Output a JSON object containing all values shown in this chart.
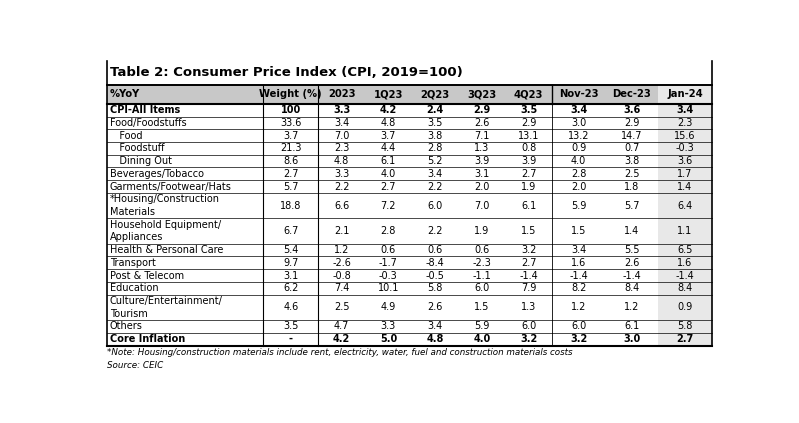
{
  "title": "Table 2: Consumer Price Index (CPI, 2019=100)",
  "columns": [
    "%YoY",
    "Weight (%)",
    "2023",
    "1Q23",
    "2Q23",
    "3Q23",
    "4Q23",
    "Nov-23",
    "Dec-23",
    "Jan-24"
  ],
  "rows": [
    {
      "label": "CPI-All Items",
      "indent": 0,
      "bold": true,
      "values": [
        "100",
        "3.3",
        "4.2",
        "2.4",
        "2.9",
        "3.5",
        "3.4",
        "3.6",
        "3.4"
      ]
    },
    {
      "label": "Food/Foodstuffs",
      "indent": 0,
      "bold": false,
      "values": [
        "33.6",
        "3.4",
        "4.8",
        "3.5",
        "2.6",
        "2.9",
        "3.0",
        "2.9",
        "2.3"
      ]
    },
    {
      "label": "   Food",
      "indent": 1,
      "bold": false,
      "values": [
        "3.7",
        "7.0",
        "3.7",
        "3.8",
        "7.1",
        "13.1",
        "13.2",
        "14.7",
        "15.6"
      ]
    },
    {
      "label": "   Foodstuff",
      "indent": 1,
      "bold": false,
      "values": [
        "21.3",
        "2.3",
        "4.4",
        "2.8",
        "1.3",
        "0.8",
        "0.9",
        "0.7",
        "-0.3"
      ]
    },
    {
      "label": "   Dining Out",
      "indent": 1,
      "bold": false,
      "values": [
        "8.6",
        "4.8",
        "6.1",
        "5.2",
        "3.9",
        "3.9",
        "4.0",
        "3.8",
        "3.6"
      ]
    },
    {
      "label": "Beverages/Tobacco",
      "indent": 0,
      "bold": false,
      "values": [
        "2.7",
        "3.3",
        "4.0",
        "3.4",
        "3.1",
        "2.7",
        "2.8",
        "2.5",
        "1.7"
      ]
    },
    {
      "label": "Garments/Footwear/Hats",
      "indent": 0,
      "bold": false,
      "values": [
        "5.7",
        "2.2",
        "2.7",
        "2.2",
        "2.0",
        "1.9",
        "2.0",
        "1.8",
        "1.4"
      ]
    },
    {
      "label": "*Housing/Construction\nMaterials",
      "indent": 0,
      "bold": false,
      "values": [
        "18.8",
        "6.6",
        "7.2",
        "6.0",
        "7.0",
        "6.1",
        "5.9",
        "5.7",
        "6.4"
      ]
    },
    {
      "label": "Household Equipment/\nAppliances",
      "indent": 0,
      "bold": false,
      "values": [
        "6.7",
        "2.1",
        "2.8",
        "2.2",
        "1.9",
        "1.5",
        "1.5",
        "1.4",
        "1.1"
      ]
    },
    {
      "label": "Health & Personal Care",
      "indent": 0,
      "bold": false,
      "values": [
        "5.4",
        "1.2",
        "0.6",
        "0.6",
        "0.6",
        "3.2",
        "3.4",
        "5.5",
        "6.5"
      ]
    },
    {
      "label": "Transport",
      "indent": 0,
      "bold": false,
      "values": [
        "9.7",
        "-2.6",
        "-1.7",
        "-8.4",
        "-2.3",
        "2.7",
        "1.6",
        "2.6",
        "1.6"
      ]
    },
    {
      "label": "Post & Telecom",
      "indent": 0,
      "bold": false,
      "values": [
        "3.1",
        "-0.8",
        "-0.3",
        "-0.5",
        "-1.1",
        "-1.4",
        "-1.4",
        "-1.4",
        "-1.4"
      ]
    },
    {
      "label": "Education",
      "indent": 0,
      "bold": false,
      "values": [
        "6.2",
        "7.4",
        "10.1",
        "5.8",
        "6.0",
        "7.9",
        "8.2",
        "8.4",
        "8.4"
      ]
    },
    {
      "label": "Culture/Entertainment/\nTourism",
      "indent": 0,
      "bold": false,
      "values": [
        "4.6",
        "2.5",
        "4.9",
        "2.6",
        "1.5",
        "1.3",
        "1.2",
        "1.2",
        "0.9"
      ]
    },
    {
      "label": "Others",
      "indent": 0,
      "bold": false,
      "values": [
        "3.5",
        "4.7",
        "3.3",
        "3.4",
        "5.9",
        "6.0",
        "6.0",
        "6.1",
        "5.8"
      ]
    },
    {
      "label": "Core Inflation",
      "indent": 0,
      "bold": true,
      "values": [
        "-",
        "4.2",
        "5.0",
        "4.8",
        "4.0",
        "3.2",
        "3.2",
        "3.0",
        "2.7"
      ]
    }
  ],
  "note": "*Note: Housing/construction materials include rent, electricity, water, fuel and construction materials costs",
  "source": "Source: CEIC",
  "header_bg": "#C8C8C8",
  "last_col_bg": "#E8E8E8",
  "col_widths_rel": [
    2.4,
    0.85,
    0.72,
    0.72,
    0.72,
    0.72,
    0.72,
    0.82,
    0.82,
    0.82
  ]
}
